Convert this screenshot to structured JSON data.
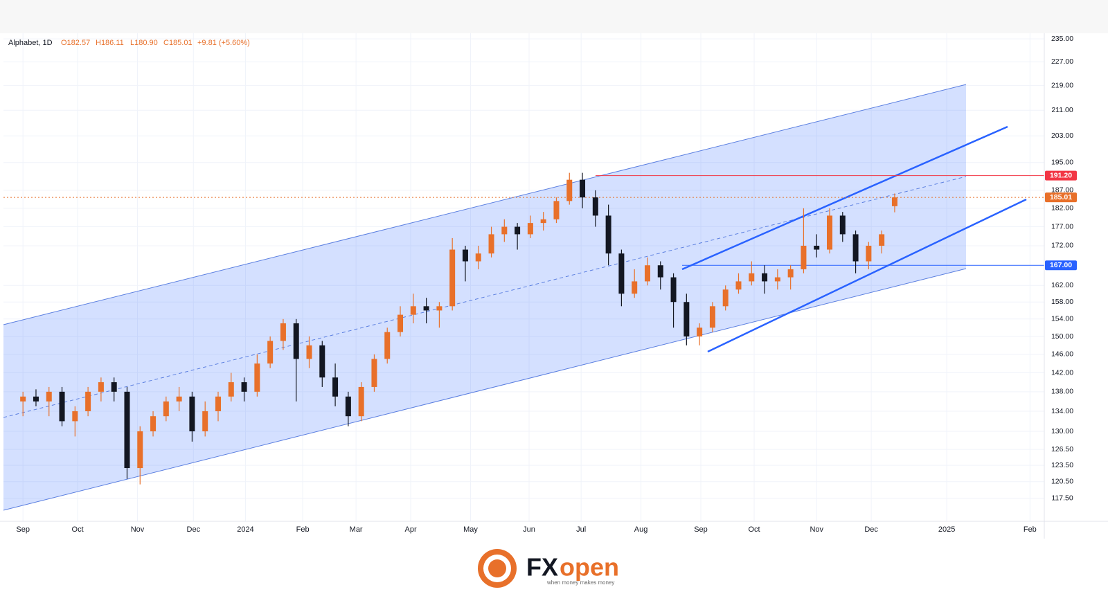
{
  "chart_data": {
    "type": "candlestick",
    "header": {
      "symbol": "Alphabet, 1D",
      "open": "O182.57",
      "high": "H186.11",
      "low": "L180.90",
      "close": "C185.01",
      "change": "+9.81 (+5.60%)"
    },
    "log_scale": true,
    "grid": true,
    "up_color": "#e8702a",
    "down_color": "#131722",
    "categories": [
      null,
      null,
      null,
      null,
      null,
      null,
      null,
      null,
      null,
      null,
      null,
      null,
      null,
      null,
      null,
      null,
      null,
      null,
      null,
      null,
      null,
      null,
      null,
      null,
      null,
      null,
      null,
      null,
      null,
      null,
      null,
      null,
      null,
      null,
      null,
      null,
      null,
      null,
      null,
      null,
      null,
      null,
      null,
      null,
      null,
      null,
      null,
      null,
      null,
      null,
      null,
      null,
      null,
      null,
      null,
      null,
      null,
      null,
      null,
      null,
      null,
      null,
      null,
      null,
      null,
      null,
      null,
      null
    ],
    "open": [
      136,
      137,
      136,
      138,
      132,
      134,
      138,
      140,
      138,
      123,
      130,
      133,
      136,
      137,
      130,
      134,
      137,
      140,
      138,
      144,
      149,
      153,
      145,
      148,
      141,
      137,
      133,
      139,
      145,
      151,
      155,
      157,
      156,
      157,
      171,
      168,
      170,
      175,
      177,
      175,
      178,
      179,
      184,
      190,
      185,
      180,
      170,
      160,
      163,
      167,
      164,
      158,
      150,
      152,
      157,
      161,
      163,
      165,
      163,
      164,
      166,
      172,
      171,
      180,
      175,
      168,
      172,
      182.57
    ],
    "high": [
      138,
      138.5,
      139,
      139,
      135,
      139,
      141,
      141,
      139,
      131,
      134,
      137,
      139,
      138,
      136,
      138,
      142,
      141,
      146,
      150,
      154,
      154,
      150,
      149,
      144,
      138,
      140,
      146,
      152,
      157,
      160,
      159,
      158,
      174,
      172,
      172,
      177,
      179,
      178,
      180,
      181,
      185,
      192,
      192,
      187,
      183,
      171,
      166,
      169,
      168,
      165,
      160,
      153,
      158,
      162,
      165,
      168,
      167,
      166,
      167,
      182,
      175,
      182,
      181,
      176,
      173,
      176,
      186.11
    ],
    "low": [
      133,
      135,
      133,
      131,
      129,
      133,
      136,
      136,
      121,
      120,
      129,
      132,
      134,
      128,
      129,
      132,
      136,
      136,
      137,
      143,
      147,
      136,
      143,
      139,
      135,
      131,
      132,
      138,
      144,
      150,
      153,
      153,
      152,
      156,
      163,
      166,
      169,
      173,
      171,
      174,
      176,
      178,
      183,
      182,
      177,
      167,
      157,
      159,
      162,
      161,
      152,
      148,
      148,
      151,
      156,
      160,
      162,
      160,
      161,
      161,
      165,
      169,
      170,
      173,
      165,
      166,
      170,
      180.9
    ],
    "close": [
      137,
      136,
      138,
      132,
      134,
      138,
      140,
      138,
      123,
      130,
      133,
      136,
      137,
      130,
      134,
      137,
      140,
      138,
      144,
      149,
      153,
      145,
      148,
      141,
      137,
      133,
      139,
      145,
      151,
      155,
      157,
      156,
      157,
      171,
      168,
      170,
      175,
      177,
      175,
      178,
      179,
      184,
      190,
      185,
      180,
      170,
      160,
      163,
      167,
      164,
      158,
      150,
      152,
      157,
      161,
      163,
      165,
      163,
      164,
      166,
      172,
      171,
      180,
      175,
      168,
      172,
      175,
      185.01
    ],
    "xlim": [
      -1.5,
      78.5
    ],
    "xticks": [
      {
        "value": 0,
        "label": "Sep"
      },
      {
        "value": 4.2,
        "label": "Oct"
      },
      {
        "value": 8.8,
        "label": "Nov"
      },
      {
        "value": 13.1,
        "label": "Dec"
      },
      {
        "value": 17.1,
        "label": "2024"
      },
      {
        "value": 21.5,
        "label": "Feb"
      },
      {
        "value": 25.6,
        "label": "Mar"
      },
      {
        "value": 29.8,
        "label": "Apr"
      },
      {
        "value": 34.4,
        "label": "May"
      },
      {
        "value": 38.9,
        "label": "Jun"
      },
      {
        "value": 42.9,
        "label": "Jul"
      },
      {
        "value": 47.5,
        "label": "Aug"
      },
      {
        "value": 52.1,
        "label": "Sep"
      },
      {
        "value": 56.2,
        "label": "Oct"
      },
      {
        "value": 61,
        "label": "Nov"
      },
      {
        "value": 65.2,
        "label": "Dec"
      },
      {
        "value": 71,
        "label": "2025"
      },
      {
        "value": 77.4,
        "label": "Feb"
      }
    ],
    "ylim": [
      113.5,
      237
    ],
    "yticks": [
      {
        "value": 235,
        "label": "235.00"
      },
      {
        "value": 227,
        "label": "227.00"
      },
      {
        "value": 219,
        "label": "219.00"
      },
      {
        "value": 211,
        "label": "211.00"
      },
      {
        "value": 203,
        "label": "203.00"
      },
      {
        "value": 195,
        "label": "195.00"
      },
      {
        "value": 187,
        "label": "187.00"
      },
      {
        "value": 182,
        "label": "182.00"
      },
      {
        "value": 177,
        "label": "177.00"
      },
      {
        "value": 172,
        "label": "172.00"
      },
      {
        "value": 162,
        "label": "162.00"
      },
      {
        "value": 158,
        "label": "158.00"
      },
      {
        "value": 154,
        "label": "154.00"
      },
      {
        "value": 150,
        "label": "150.00"
      },
      {
        "value": 146,
        "label": "146.00"
      },
      {
        "value": 142,
        "label": "142.00"
      },
      {
        "value": 138,
        "label": "138.00"
      },
      {
        "value": 134,
        "label": "134.00"
      },
      {
        "value": 130,
        "label": "130.00"
      },
      {
        "value": 126.5,
        "label": "126.50"
      },
      {
        "value": 123.5,
        "label": "123.50"
      },
      {
        "value": 120.5,
        "label": "120.50"
      },
      {
        "value": 117.5,
        "label": "117.50"
      }
    ],
    "price_lines": [
      {
        "value": 191.2,
        "label": "191.20",
        "color": "#f23645",
        "style": "solid"
      },
      {
        "value": 185.01,
        "label": "185.01",
        "color": "#e8702a",
        "style": "dotted"
      },
      {
        "value": 167,
        "label": "167.00",
        "color": "#2962ff",
        "style": "solid"
      }
    ],
    "brand": {
      "name_a": "FX",
      "name_b": "open",
      "tagline": "when money makes money"
    }
  }
}
